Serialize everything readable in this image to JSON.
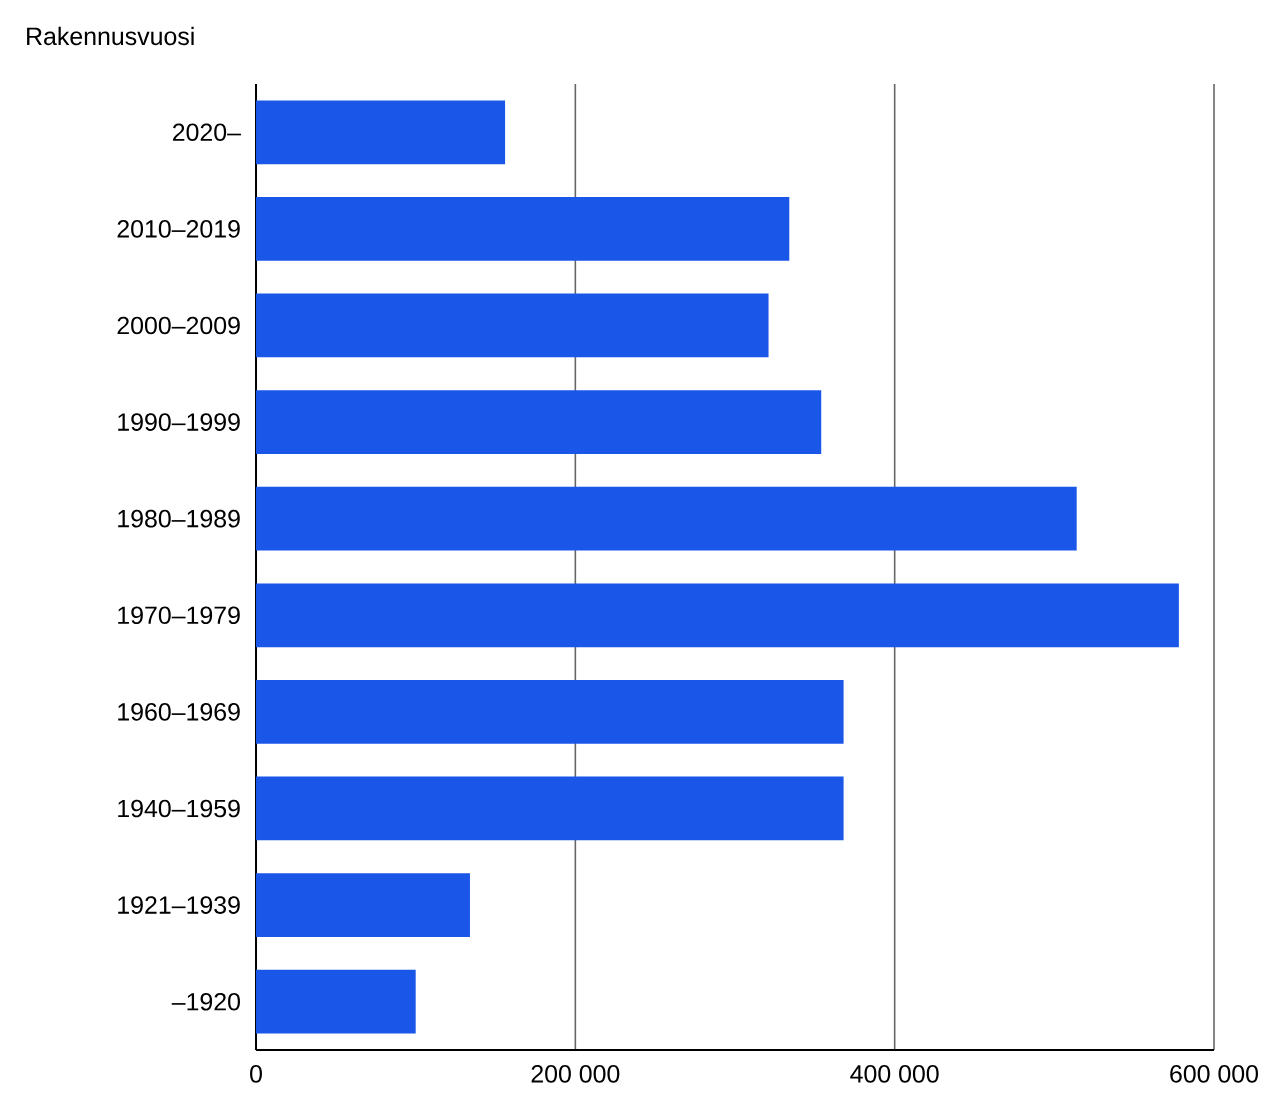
{
  "chart_data": {
    "type": "bar",
    "orientation": "horizontal",
    "ylabel": "Rakennusvuosi",
    "categories": [
      "2020–",
      "2010–2019",
      "2000–2009",
      "1990–1999",
      "1980–1989",
      "1970–1979",
      "1960–1969",
      "1940–1959",
      "1921–1939",
      "–1920"
    ],
    "values": [
      156000,
      334000,
      321000,
      354000,
      514000,
      578000,
      368000,
      368000,
      134000,
      100000
    ],
    "color": "#1a56e8",
    "xlim": [
      0,
      600000
    ],
    "xticks": [
      0,
      {
        "value": 200000,
        "label": "200 000"
      },
      {
        "value": 400000,
        "label": "400 000"
      },
      {
        "value": 600000,
        "label": "600 000"
      }
    ],
    "grid": "x"
  }
}
